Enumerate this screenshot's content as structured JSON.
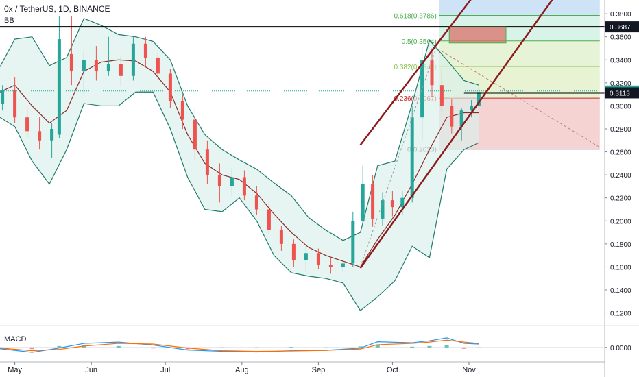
{
  "header": {
    "title": "0x / TetherUS, 1D, BINANCE",
    "indicator": "BB"
  },
  "macd_label": "MACD",
  "colors": {
    "up": "#26a69a",
    "down": "#ef5350",
    "bb_line": "#1e7a6b",
    "bb_fill": "#d8f0ea",
    "basis": "#8b2b2b",
    "channel": "#8b1a1a",
    "level_line": "#000000",
    "price_badge": "#131722"
  },
  "chart_data": {
    "type": "candlestick",
    "title": "0x / TetherUS, 1D, BINANCE",
    "x_ticks": [
      "May",
      "Jun",
      "Jul",
      "Aug",
      "Sep",
      "Oct",
      "Nov"
    ],
    "y_ticks": [
      "0.3800",
      "0.3600",
      "0.3400",
      "0.3200",
      "0.3000",
      "0.2800",
      "0.2600",
      "0.2400",
      "0.2200",
      "0.2000",
      "0.1800",
      "0.1600",
      "0.1400",
      "0.1200"
    ],
    "ylim": [
      0.112,
      0.392
    ],
    "price_labels": [
      "0.3687",
      "0.3129",
      "0.3113"
    ],
    "price_levels": [
      0.3687,
      0.3129,
      0.3113
    ],
    "fib_levels": [
      {
        "label": "0.618(0.3786)",
        "price": 0.3786
      },
      {
        "label": "0.5(0.3564)",
        "price": 0.3564
      },
      {
        "label": "0.382(0.3342)",
        "price": 0.3342
      },
      {
        "label": "0.236(0.3067)",
        "price": 0.3067
      },
      {
        "label": "0(0.2623)",
        "price": 0.2623
      }
    ],
    "bollinger": {
      "upper": [
        {
          "x": "Apr 25",
          "y": 0.334
        },
        {
          "x": "May 1",
          "y": 0.358
        },
        {
          "x": "May 8",
          "y": 0.36
        },
        {
          "x": "May 15",
          "y": 0.335
        },
        {
          "x": "May 22",
          "y": 0.342
        },
        {
          "x": "May 29",
          "y": 0.376
        },
        {
          "x": "Jun 5",
          "y": 0.37
        },
        {
          "x": "Jun 12",
          "y": 0.362
        },
        {
          "x": "Jun 19",
          "y": 0.36
        },
        {
          "x": "Jun 26",
          "y": 0.356
        },
        {
          "x": "Jul 3",
          "y": 0.34
        },
        {
          "x": "Jul 10",
          "y": 0.3
        },
        {
          "x": "Jul 17",
          "y": 0.275
        },
        {
          "x": "Jul 24",
          "y": 0.262
        },
        {
          "x": "Jul 31",
          "y": 0.253
        },
        {
          "x": "Aug 7",
          "y": 0.245
        },
        {
          "x": "Aug 14",
          "y": 0.233
        },
        {
          "x": "Aug 21",
          "y": 0.222
        },
        {
          "x": "Aug 28",
          "y": 0.203
        },
        {
          "x": "Sep 4",
          "y": 0.192
        },
        {
          "x": "Sep 11",
          "y": 0.183
        },
        {
          "x": "Sep 18",
          "y": 0.19
        },
        {
          "x": "Sep 25",
          "y": 0.248
        },
        {
          "x": "Oct 2",
          "y": 0.252
        },
        {
          "x": "Oct 9",
          "y": 0.302
        },
        {
          "x": "Oct 16",
          "y": 0.357
        },
        {
          "x": "Oct 23",
          "y": 0.34
        },
        {
          "x": "Oct 30",
          "y": 0.322
        },
        {
          "x": "Nov 5",
          "y": 0.318
        }
      ],
      "lower": [
        {
          "x": "Apr 25",
          "y": 0.29
        },
        {
          "x": "May 1",
          "y": 0.282
        },
        {
          "x": "May 8",
          "y": 0.252
        },
        {
          "x": "May 15",
          "y": 0.232
        },
        {
          "x": "May 22",
          "y": 0.262
        },
        {
          "x": "May 29",
          "y": 0.302
        },
        {
          "x": "Jun 5",
          "y": 0.3
        },
        {
          "x": "Jun 12",
          "y": 0.3
        },
        {
          "x": "Jun 19",
          "y": 0.312
        },
        {
          "x": "Jun 26",
          "y": 0.312
        },
        {
          "x": "Jul 3",
          "y": 0.28
        },
        {
          "x": "Jul 10",
          "y": 0.238
        },
        {
          "x": "Jul 17",
          "y": 0.21
        },
        {
          "x": "Jul 24",
          "y": 0.208
        },
        {
          "x": "Jul 31",
          "y": 0.22
        },
        {
          "x": "Aug 7",
          "y": 0.2
        },
        {
          "x": "Aug 14",
          "y": 0.17
        },
        {
          "x": "Aug 21",
          "y": 0.155
        },
        {
          "x": "Aug 28",
          "y": 0.152
        },
        {
          "x": "Sep 4",
          "y": 0.15
        },
        {
          "x": "Sep 11",
          "y": 0.146
        },
        {
          "x": "Sep 18",
          "y": 0.122
        },
        {
          "x": "Sep 25",
          "y": 0.134
        },
        {
          "x": "Oct 2",
          "y": 0.148
        },
        {
          "x": "Oct 9",
          "y": 0.178
        },
        {
          "x": "Oct 16",
          "y": 0.168
        },
        {
          "x": "Oct 23",
          "y": 0.245
        },
        {
          "x": "Oct 30",
          "y": 0.262
        },
        {
          "x": "Nov 5",
          "y": 0.268
        }
      ],
      "basis": [
        {
          "x": "Apr 25",
          "y": 0.312
        },
        {
          "x": "May 1",
          "y": 0.318
        },
        {
          "x": "May 8",
          "y": 0.3
        },
        {
          "x": "May 15",
          "y": 0.285
        },
        {
          "x": "May 22",
          "y": 0.296
        },
        {
          "x": "May 29",
          "y": 0.33
        },
        {
          "x": "Jun 5",
          "y": 0.338
        },
        {
          "x": "Jun 12",
          "y": 0.34
        },
        {
          "x": "Jun 19",
          "y": 0.339
        },
        {
          "x": "Jun 26",
          "y": 0.33
        },
        {
          "x": "Jul 3",
          "y": 0.312
        },
        {
          "x": "Jul 10",
          "y": 0.275
        },
        {
          "x": "Jul 17",
          "y": 0.25
        },
        {
          "x": "Jul 24",
          "y": 0.24
        },
        {
          "x": "Jul 31",
          "y": 0.236
        },
        {
          "x": "Aug 7",
          "y": 0.224
        },
        {
          "x": "Aug 14",
          "y": 0.206
        },
        {
          "x": "Aug 21",
          "y": 0.19
        },
        {
          "x": "Aug 28",
          "y": 0.177
        },
        {
          "x": "Sep 4",
          "y": 0.17
        },
        {
          "x": "Sep 11",
          "y": 0.165
        },
        {
          "x": "Sep 18",
          "y": 0.16
        },
        {
          "x": "Sep 25",
          "y": 0.184
        },
        {
          "x": "Oct 2",
          "y": 0.205
        },
        {
          "x": "Oct 9",
          "y": 0.232
        },
        {
          "x": "Oct 16",
          "y": 0.262
        },
        {
          "x": "Oct 23",
          "y": 0.29
        },
        {
          "x": "Oct 30",
          "y": 0.294
        },
        {
          "x": "Nov 5",
          "y": 0.294
        }
      ]
    },
    "candles": [
      {
        "x": "Apr 26",
        "open": 0.302,
        "high": 0.318,
        "low": 0.296,
        "close": 0.314
      },
      {
        "x": "May 1",
        "open": 0.314,
        "high": 0.325,
        "low": 0.285,
        "close": 0.29
      },
      {
        "x": "May 6",
        "open": 0.29,
        "high": 0.3,
        "low": 0.272,
        "close": 0.278
      },
      {
        "x": "May 11",
        "open": 0.278,
        "high": 0.29,
        "low": 0.262,
        "close": 0.27
      },
      {
        "x": "May 16",
        "open": 0.27,
        "high": 0.285,
        "low": 0.255,
        "close": 0.28
      },
      {
        "x": "May 19",
        "open": 0.275,
        "high": 0.378,
        "low": 0.272,
        "close": 0.358
      },
      {
        "x": "May 24",
        "open": 0.345,
        "high": 0.378,
        "low": 0.318,
        "close": 0.33
      },
      {
        "x": "May 29",
        "open": 0.33,
        "high": 0.348,
        "low": 0.31,
        "close": 0.34
      },
      {
        "x": "Jun 3",
        "open": 0.34,
        "high": 0.352,
        "low": 0.322,
        "close": 0.33
      },
      {
        "x": "Jun 8",
        "open": 0.33,
        "high": 0.36,
        "low": 0.326,
        "close": 0.336
      },
      {
        "x": "Jun 13",
        "open": 0.336,
        "high": 0.344,
        "low": 0.318,
        "close": 0.326
      },
      {
        "x": "Jun 18",
        "open": 0.326,
        "high": 0.36,
        "low": 0.322,
        "close": 0.354
      },
      {
        "x": "Jun 23",
        "open": 0.354,
        "high": 0.36,
        "low": 0.334,
        "close": 0.342
      },
      {
        "x": "Jun 28",
        "open": 0.342,
        "high": 0.346,
        "low": 0.322,
        "close": 0.328
      },
      {
        "x": "Jul 3",
        "open": 0.328,
        "high": 0.332,
        "low": 0.298,
        "close": 0.304
      },
      {
        "x": "Jul 8",
        "open": 0.304,
        "high": 0.31,
        "low": 0.28,
        "close": 0.288
      },
      {
        "x": "Jul 13",
        "open": 0.288,
        "high": 0.298,
        "low": 0.252,
        "close": 0.262
      },
      {
        "x": "Jul 18",
        "open": 0.262,
        "high": 0.27,
        "low": 0.232,
        "close": 0.24
      },
      {
        "x": "Jul 23",
        "open": 0.24,
        "high": 0.25,
        "low": 0.216,
        "close": 0.23
      },
      {
        "x": "Jul 28",
        "open": 0.23,
        "high": 0.246,
        "low": 0.222,
        "close": 0.238
      },
      {
        "x": "Aug 2",
        "open": 0.238,
        "high": 0.244,
        "low": 0.218,
        "close": 0.222
      },
      {
        "x": "Aug 7",
        "open": 0.222,
        "high": 0.23,
        "low": 0.205,
        "close": 0.21
      },
      {
        "x": "Aug 12",
        "open": 0.21,
        "high": 0.216,
        "low": 0.188,
        "close": 0.192
      },
      {
        "x": "Aug 17",
        "open": 0.192,
        "high": 0.196,
        "low": 0.174,
        "close": 0.18
      },
      {
        "x": "Aug 22",
        "open": 0.18,
        "high": 0.184,
        "low": 0.16,
        "close": 0.166
      },
      {
        "x": "Aug 27",
        "open": 0.166,
        "high": 0.178,
        "low": 0.156,
        "close": 0.172
      },
      {
        "x": "Sep 1",
        "open": 0.172,
        "high": 0.176,
        "low": 0.158,
        "close": 0.162
      },
      {
        "x": "Sep 6",
        "open": 0.162,
        "high": 0.168,
        "low": 0.154,
        "close": 0.16
      },
      {
        "x": "Sep 11",
        "open": 0.16,
        "high": 0.166,
        "low": 0.155,
        "close": 0.163
      },
      {
        "x": "Sep 15",
        "open": 0.163,
        "high": 0.208,
        "low": 0.16,
        "close": 0.2
      },
      {
        "x": "Sep 19",
        "open": 0.2,
        "high": 0.248,
        "low": 0.196,
        "close": 0.232
      },
      {
        "x": "Sep 23",
        "open": 0.232,
        "high": 0.24,
        "low": 0.195,
        "close": 0.202
      },
      {
        "x": "Sep 27",
        "open": 0.202,
        "high": 0.225,
        "low": 0.196,
        "close": 0.218
      },
      {
        "x": "Oct 1",
        "open": 0.218,
        "high": 0.226,
        "low": 0.204,
        "close": 0.212
      },
      {
        "x": "Oct 5",
        "open": 0.212,
        "high": 0.226,
        "low": 0.205,
        "close": 0.22
      },
      {
        "x": "Oct 9",
        "open": 0.22,
        "high": 0.3,
        "low": 0.216,
        "close": 0.29
      },
      {
        "x": "Oct 13",
        "open": 0.29,
        "high": 0.352,
        "low": 0.27,
        "close": 0.34
      },
      {
        "x": "Oct 17",
        "open": 0.34,
        "high": 0.35,
        "low": 0.308,
        "close": 0.318
      },
      {
        "x": "Oct 21",
        "open": 0.318,
        "high": 0.332,
        "low": 0.295,
        "close": 0.3
      },
      {
        "x": "Oct 25",
        "open": 0.3,
        "high": 0.306,
        "low": 0.276,
        "close": 0.282
      },
      {
        "x": "Oct 29",
        "open": 0.282,
        "high": 0.298,
        "low": 0.27,
        "close": 0.296
      },
      {
        "x": "Nov 2",
        "open": 0.296,
        "high": 0.305,
        "low": 0.29,
        "close": 0.3
      },
      {
        "x": "Nov 5",
        "open": 0.3,
        "high": 0.316,
        "low": 0.298,
        "close": 0.312
      }
    ],
    "macd": {
      "line": [
        {
          "x": "Apr 25",
          "y": -0.0004
        },
        {
          "x": "May 8",
          "y": -0.0015
        },
        {
          "x": "May 19",
          "y": -0.0002
        },
        {
          "x": "May 29",
          "y": 0.0012
        },
        {
          "x": "Jun 12",
          "y": 0.0016
        },
        {
          "x": "Jun 26",
          "y": 0.0007
        },
        {
          "x": "Jul 10",
          "y": -0.0008
        },
        {
          "x": "Jul 24",
          "y": -0.0012
        },
        {
          "x": "Aug 7",
          "y": -0.0014
        },
        {
          "x": "Aug 21",
          "y": -0.001
        },
        {
          "x": "Sep 4",
          "y": -0.0009
        },
        {
          "x": "Sep 18",
          "y": -0.0002
        },
        {
          "x": "Sep 25",
          "y": 0.0017
        },
        {
          "x": "Oct 9",
          "y": 0.0014
        },
        {
          "x": "Oct 16",
          "y": 0.002
        },
        {
          "x": "Oct 23",
          "y": 0.0029
        },
        {
          "x": "Oct 30",
          "y": 0.0012
        },
        {
          "x": "Nov 5",
          "y": 0.001
        }
      ],
      "signal": [
        {
          "x": "Apr 25",
          "y": -0.0002
        },
        {
          "x": "May 8",
          "y": -0.001
        },
        {
          "x": "May 19",
          "y": -0.0006
        },
        {
          "x": "May 29",
          "y": 0.0004
        },
        {
          "x": "Jun 12",
          "y": 0.0012
        },
        {
          "x": "Jun 26",
          "y": 0.001
        },
        {
          "x": "Jul 10",
          "y": -0.0002
        },
        {
          "x": "Jul 24",
          "y": -0.001
        },
        {
          "x": "Aug 7",
          "y": -0.0012
        },
        {
          "x": "Aug 21",
          "y": -0.0011
        },
        {
          "x": "Sep 4",
          "y": -0.0009
        },
        {
          "x": "Sep 18",
          "y": -0.0005
        },
        {
          "x": "Sep 25",
          "y": 0.0008
        },
        {
          "x": "Oct 9",
          "y": 0.0012
        },
        {
          "x": "Oct 16",
          "y": 0.0016
        },
        {
          "x": "Oct 23",
          "y": 0.0022
        },
        {
          "x": "Oct 30",
          "y": 0.0016
        },
        {
          "x": "Nov 5",
          "y": 0.0012
        }
      ],
      "ylim": [
        -0.004,
        0.006
      ],
      "y_ticks": [
        "0.0000"
      ]
    }
  }
}
